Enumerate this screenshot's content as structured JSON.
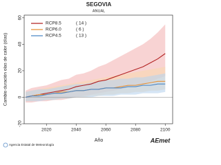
{
  "chart_data": {
    "type": "line",
    "title": "SEGOVIA",
    "subtitle": "ANUAL",
    "x_label": "Año",
    "y_label": "Cambio duración olas de calor (días)",
    "x": [
      2006,
      2010,
      2015,
      2020,
      2025,
      2030,
      2035,
      2040,
      2045,
      2050,
      2055,
      2060,
      2065,
      2070,
      2075,
      2080,
      2085,
      2090,
      2095,
      2100
    ],
    "series": [
      {
        "name": "RCP8.5",
        "models": "( 14 )",
        "color": "#b22222",
        "band_color": "#f4b6b6",
        "values": [
          0,
          1,
          2,
          3,
          4,
          5,
          6,
          8,
          9,
          10,
          12,
          13,
          15,
          17,
          19,
          21,
          23,
          26,
          29,
          33
        ],
        "lower": [
          -4,
          -4,
          -3,
          -3,
          -2,
          -2,
          -1,
          0,
          1,
          2,
          3,
          4,
          5,
          6,
          8,
          9,
          10,
          12,
          14,
          16
        ],
        "upper": [
          5,
          7,
          8,
          9,
          11,
          13,
          14,
          17,
          18,
          20,
          23,
          25,
          28,
          31,
          34,
          37,
          40,
          44,
          49,
          55
        ]
      },
      {
        "name": "RCP6.0",
        "models": "( 6 )",
        "color": "#e69138",
        "band_color": "#f9d9b0",
        "values": [
          0,
          1,
          2,
          2,
          3,
          4,
          4,
          5,
          5,
          6,
          6,
          7,
          7,
          8,
          9,
          9,
          10,
          11,
          12,
          12
        ],
        "lower": [
          -3,
          -3,
          -2,
          -2,
          -2,
          -1,
          -1,
          0,
          0,
          1,
          1,
          2,
          2,
          3,
          3,
          4,
          4,
          5,
          5,
          6
        ],
        "upper": [
          4,
          5,
          6,
          7,
          8,
          9,
          10,
          11,
          12,
          13,
          14,
          15,
          16,
          17,
          18,
          19,
          20,
          21,
          22,
          23
        ]
      },
      {
        "name": "RCP4.5",
        "models": "( 13 )",
        "color": "#4a86c5",
        "band_color": "#b9d4ee",
        "values": [
          0,
          1,
          1,
          2,
          3,
          3,
          4,
          5,
          5,
          6,
          6,
          7,
          7,
          7,
          8,
          8,
          9,
          9,
          10,
          10
        ],
        "lower": [
          -3,
          -3,
          -3,
          -2,
          -2,
          -1,
          -1,
          0,
          0,
          0,
          1,
          1,
          1,
          2,
          2,
          2,
          3,
          3,
          3,
          4
        ],
        "upper": [
          4,
          5,
          6,
          6,
          7,
          8,
          9,
          10,
          10,
          11,
          12,
          13,
          13,
          14,
          14,
          15,
          15,
          16,
          17,
          18
        ]
      }
    ],
    "xlim": [
      2005,
      2105
    ],
    "xticks": [
      2020,
      2040,
      2060,
      2080,
      2100
    ],
    "ylim": [
      -20,
      62
    ],
    "yticks": [
      -20,
      0,
      20,
      40,
      60
    ],
    "zero_line": true
  },
  "footer": {
    "agency": "Agencia Estatal de Meteorología",
    "logo": "AEmet"
  }
}
